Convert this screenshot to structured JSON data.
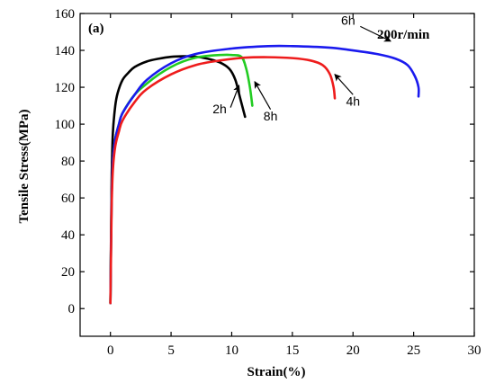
{
  "chart_data": {
    "type": "line",
    "panel_label": "(a)",
    "annotation": "200r/min",
    "xlabel": "Strain(%)",
    "ylabel": "Tensile Stress(MPa)",
    "xlim": [
      -2.5,
      30
    ],
    "ylim": [
      -15,
      160
    ],
    "xticks": [
      0,
      5,
      10,
      15,
      20,
      25,
      30
    ],
    "yticks": [
      0,
      20,
      40,
      60,
      80,
      100,
      120,
      140,
      160
    ],
    "grid": false,
    "legend": "none",
    "series": [
      {
        "name": "2h",
        "color": "#000000",
        "x": [
          0,
          0.05,
          0.1,
          0.2,
          0.4,
          0.6,
          1.0,
          1.5,
          2.0,
          3.0,
          4.0,
          5.0,
          6.0,
          7.0,
          8.0,
          9.0,
          9.8,
          10.3,
          10.7,
          11.1
        ],
        "y": [
          3,
          40,
          70,
          95,
          110,
          117,
          124,
          128,
          131,
          134,
          135.5,
          136.5,
          136.8,
          136.6,
          135.5,
          133.5,
          130,
          124,
          114,
          104
        ]
      },
      {
        "name": "8h",
        "color": "#22cc22",
        "x": [
          0,
          0.05,
          0.1,
          0.2,
          0.4,
          0.7,
          1.0,
          2.0,
          3.0,
          4.0,
          5.0,
          6.0,
          7.0,
          8.0,
          9.0,
          10.0,
          10.8,
          11.2,
          11.5,
          11.7
        ],
        "y": [
          3,
          35,
          60,
          80,
          92,
          100,
          106,
          116,
          122,
          127,
          131,
          134,
          136,
          137,
          137.5,
          137.5,
          136.5,
          130,
          120,
          110
        ]
      },
      {
        "name": "6h",
        "color": "#1a1aee",
        "x": [
          0,
          0.05,
          0.1,
          0.2,
          0.4,
          0.7,
          1.0,
          2.0,
          3.0,
          5.0,
          7.0,
          10.0,
          13.0,
          15.0,
          18.0,
          20.0,
          22.0,
          23.5,
          24.5,
          25.1,
          25.4,
          25.4
        ],
        "y": [
          3,
          35,
          60,
          80,
          92,
          100,
          106,
          116,
          124,
          133,
          138,
          141,
          142.3,
          142.3,
          141.5,
          140,
          138,
          135.5,
          132,
          126,
          120,
          115
        ]
      },
      {
        "name": "4h",
        "color": "#ee1c1c",
        "x": [
          0,
          0.05,
          0.1,
          0.2,
          0.4,
          0.7,
          1.0,
          2.0,
          3.0,
          5.0,
          7.0,
          9.0,
          11.0,
          13.0,
          15.0,
          16.5,
          17.5,
          18.1,
          18.4,
          18.5
        ],
        "y": [
          3,
          30,
          55,
          75,
          88,
          96,
          102,
          112,
          119,
          127,
          132,
          134.5,
          136,
          136.3,
          135.8,
          134.5,
          132,
          127,
          120,
          114
        ]
      }
    ],
    "curve_labels": [
      {
        "text": "2h",
        "series": "2h",
        "label_x": 9.0,
        "label_y": 106,
        "arrow_from": [
          9.9,
          109
        ],
        "arrow_to": [
          10.6,
          121
        ]
      },
      {
        "text": "8h",
        "series": "8h",
        "label_x": 13.2,
        "label_y": 102,
        "arrow_from": [
          13.2,
          108
        ],
        "arrow_to": [
          11.9,
          123
        ]
      },
      {
        "text": "4h",
        "series": "4h",
        "label_x": 20.0,
        "label_y": 110,
        "arrow_from": [
          20.0,
          116
        ],
        "arrow_to": [
          18.5,
          127
        ]
      },
      {
        "text": "6h",
        "series": "6h",
        "label_x": 19.6,
        "label_y": 154,
        "arrow_from": [
          20.6,
          153
        ],
        "arrow_to": [
          23.1,
          145
        ]
      }
    ]
  }
}
